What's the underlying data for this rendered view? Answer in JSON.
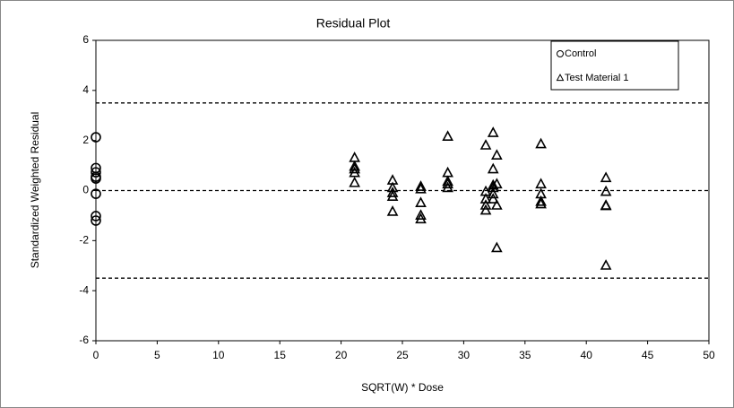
{
  "chart_data": {
    "type": "scatter",
    "title": "Residual Plot",
    "x_label": "SQRT(W) * Dose",
    "y_label": "Standardized Weighted Residual",
    "xlim": [
      0,
      50
    ],
    "xticks": [
      0,
      5,
      10,
      15,
      20,
      25,
      30,
      35,
      40,
      45,
      50
    ],
    "ylim": [
      -6,
      6
    ],
    "yticks": [
      -6,
      -4,
      -2,
      0,
      2,
      4,
      6
    ],
    "hlines": [
      3.5,
      0,
      -3.5
    ],
    "legend": "upper right",
    "series": [
      {
        "name": "Control",
        "marker": "circle",
        "color": "#000000",
        "x": [
          0,
          0,
          0,
          0,
          0,
          0,
          0,
          0
        ],
        "values": [
          2.13,
          0.9,
          0.73,
          0.55,
          0.48,
          -0.13,
          -1.02,
          -1.2
        ]
      },
      {
        "name": "Test Material 1",
        "marker": "triangle",
        "color": "#000000",
        "x": [
          21.1,
          21.1,
          21.1,
          21.1,
          21.1,
          24.2,
          24.2,
          24.2,
          24.2,
          24.2,
          26.5,
          26.5,
          26.5,
          26.5,
          26.5,
          28.7,
          28.7,
          28.7,
          28.7,
          28.7,
          31.8,
          31.8,
          31.8,
          31.8,
          31.8,
          32.4,
          32.4,
          32.4,
          32.4,
          32.4,
          32.4,
          32.7,
          32.7,
          32.7,
          32.7,
          36.3,
          36.3,
          36.3,
          36.3,
          36.3,
          41.6,
          41.6,
          41.6,
          41.6,
          41.6
        ],
        "values": [
          1.3,
          0.95,
          0.85,
          0.7,
          0.3,
          0.4,
          0.1,
          -0.1,
          -0.25,
          -0.85,
          0.15,
          0.05,
          -0.5,
          -1.0,
          -1.15,
          2.15,
          0.7,
          0.35,
          0.25,
          0.1,
          1.8,
          -0.05,
          -0.35,
          -0.6,
          -0.8,
          2.3,
          0.85,
          0.2,
          0.1,
          -0.15,
          -0.35,
          1.4,
          0.25,
          -0.6,
          -2.3,
          1.85,
          0.25,
          -0.15,
          -0.45,
          -0.55,
          0.5,
          -0.05,
          -0.6,
          -0.62,
          -3.0
        ]
      }
    ]
  }
}
